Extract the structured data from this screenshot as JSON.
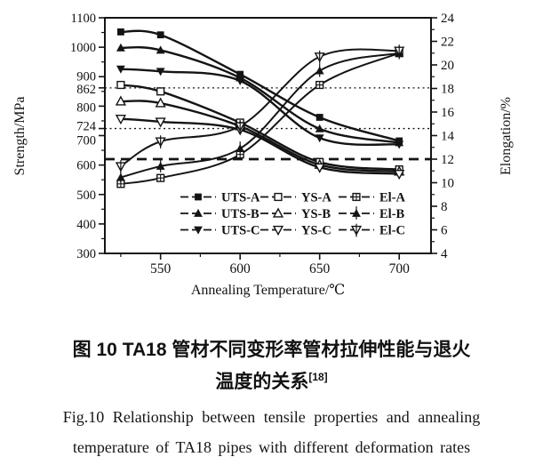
{
  "figure": {
    "caption_zh_line1": "图 10   TA18 管材不同变形率管材拉伸性能与退火",
    "caption_zh_line2": "温度的关系",
    "caption_zh_ref": "[18]",
    "caption_en_line1": "Fig.10   Relationship between tensile properties and annealing",
    "caption_en_line2": "temperature of TA18 pipes with different deformation rates"
  },
  "chart_data": {
    "type": "line",
    "title": "",
    "xlabel": "Annealing Temperature/℃",
    "ylabel_left": "Strength/MPa",
    "ylabel_right": "Elongation/%",
    "x": [
      525,
      550,
      600,
      650,
      700
    ],
    "xlim": [
      515,
      720
    ],
    "xticks": [
      550,
      600,
      650,
      700
    ],
    "xminor": [
      525,
      575,
      625,
      675
    ],
    "ylim_left": [
      300,
      1100
    ],
    "yticks_left": [
      300,
      400,
      500,
      600,
      700,
      724,
      800,
      862,
      900,
      1000,
      1100
    ],
    "yminor_left": [
      350,
      450,
      550,
      650,
      750,
      850,
      950,
      1050
    ],
    "ylim_right": [
      4,
      24
    ],
    "yticks_right": [
      4,
      6,
      8,
      10,
      12,
      14,
      16,
      18,
      20,
      22,
      24
    ],
    "yminor_right": [
      5,
      7,
      9,
      11,
      13,
      15,
      17,
      19,
      21,
      23
    ],
    "grid": false,
    "reference_lines": [
      {
        "axis": "left",
        "value": 862,
        "style": "dotted"
      },
      {
        "axis": "left",
        "value": 724,
        "style": "dotted"
      },
      {
        "axis": "right",
        "value": 12,
        "style": "bold-dashed"
      }
    ],
    "series": [
      {
        "name": "UTS-A",
        "axis": "left",
        "marker": "square-filled",
        "values": [
          1052,
          1042,
          908,
          762,
          682
        ]
      },
      {
        "name": "UTS-B",
        "axis": "left",
        "marker": "triangle-up-filled",
        "values": [
          998,
          990,
          896,
          723,
          676
        ]
      },
      {
        "name": "UTS-C",
        "axis": "left",
        "marker": "triangle-down-filled",
        "values": [
          926,
          918,
          886,
          692,
          670
        ]
      },
      {
        "name": "YS-A",
        "axis": "left",
        "marker": "square-open",
        "values": [
          872,
          850,
          744,
          610,
          585
        ]
      },
      {
        "name": "YS-B",
        "axis": "left",
        "marker": "triangle-up-open",
        "values": [
          816,
          810,
          732,
          601,
          578
        ]
      },
      {
        "name": "YS-C",
        "axis": "left",
        "marker": "triangle-down-open",
        "values": [
          757,
          747,
          720,
          592,
          570
        ]
      },
      {
        "name": "El-A",
        "axis": "right",
        "marker": "square-plus",
        "values": [
          9.9,
          10.4,
          12.4,
          18.3,
          21.0
        ]
      },
      {
        "name": "El-B",
        "axis": "right",
        "marker": "triangle-up-line",
        "values": [
          10.45,
          11.4,
          12.9,
          19.5,
          21.0
        ]
      },
      {
        "name": "El-C",
        "axis": "right",
        "marker": "triangle-down-line",
        "values": [
          11.4,
          13.5,
          14.8,
          20.7,
          21.2
        ]
      }
    ],
    "legend": {
      "position": "inside-bottom-center",
      "rows": [
        [
          "UTS-A",
          "YS-A",
          "El-A"
        ],
        [
          "UTS-B",
          "YS-B",
          "El-B"
        ],
        [
          "UTS-C",
          "YS-C",
          "El-C"
        ]
      ]
    },
    "colors": {
      "line": "#141414",
      "background": "#ffffff",
      "text": "#111111"
    }
  }
}
